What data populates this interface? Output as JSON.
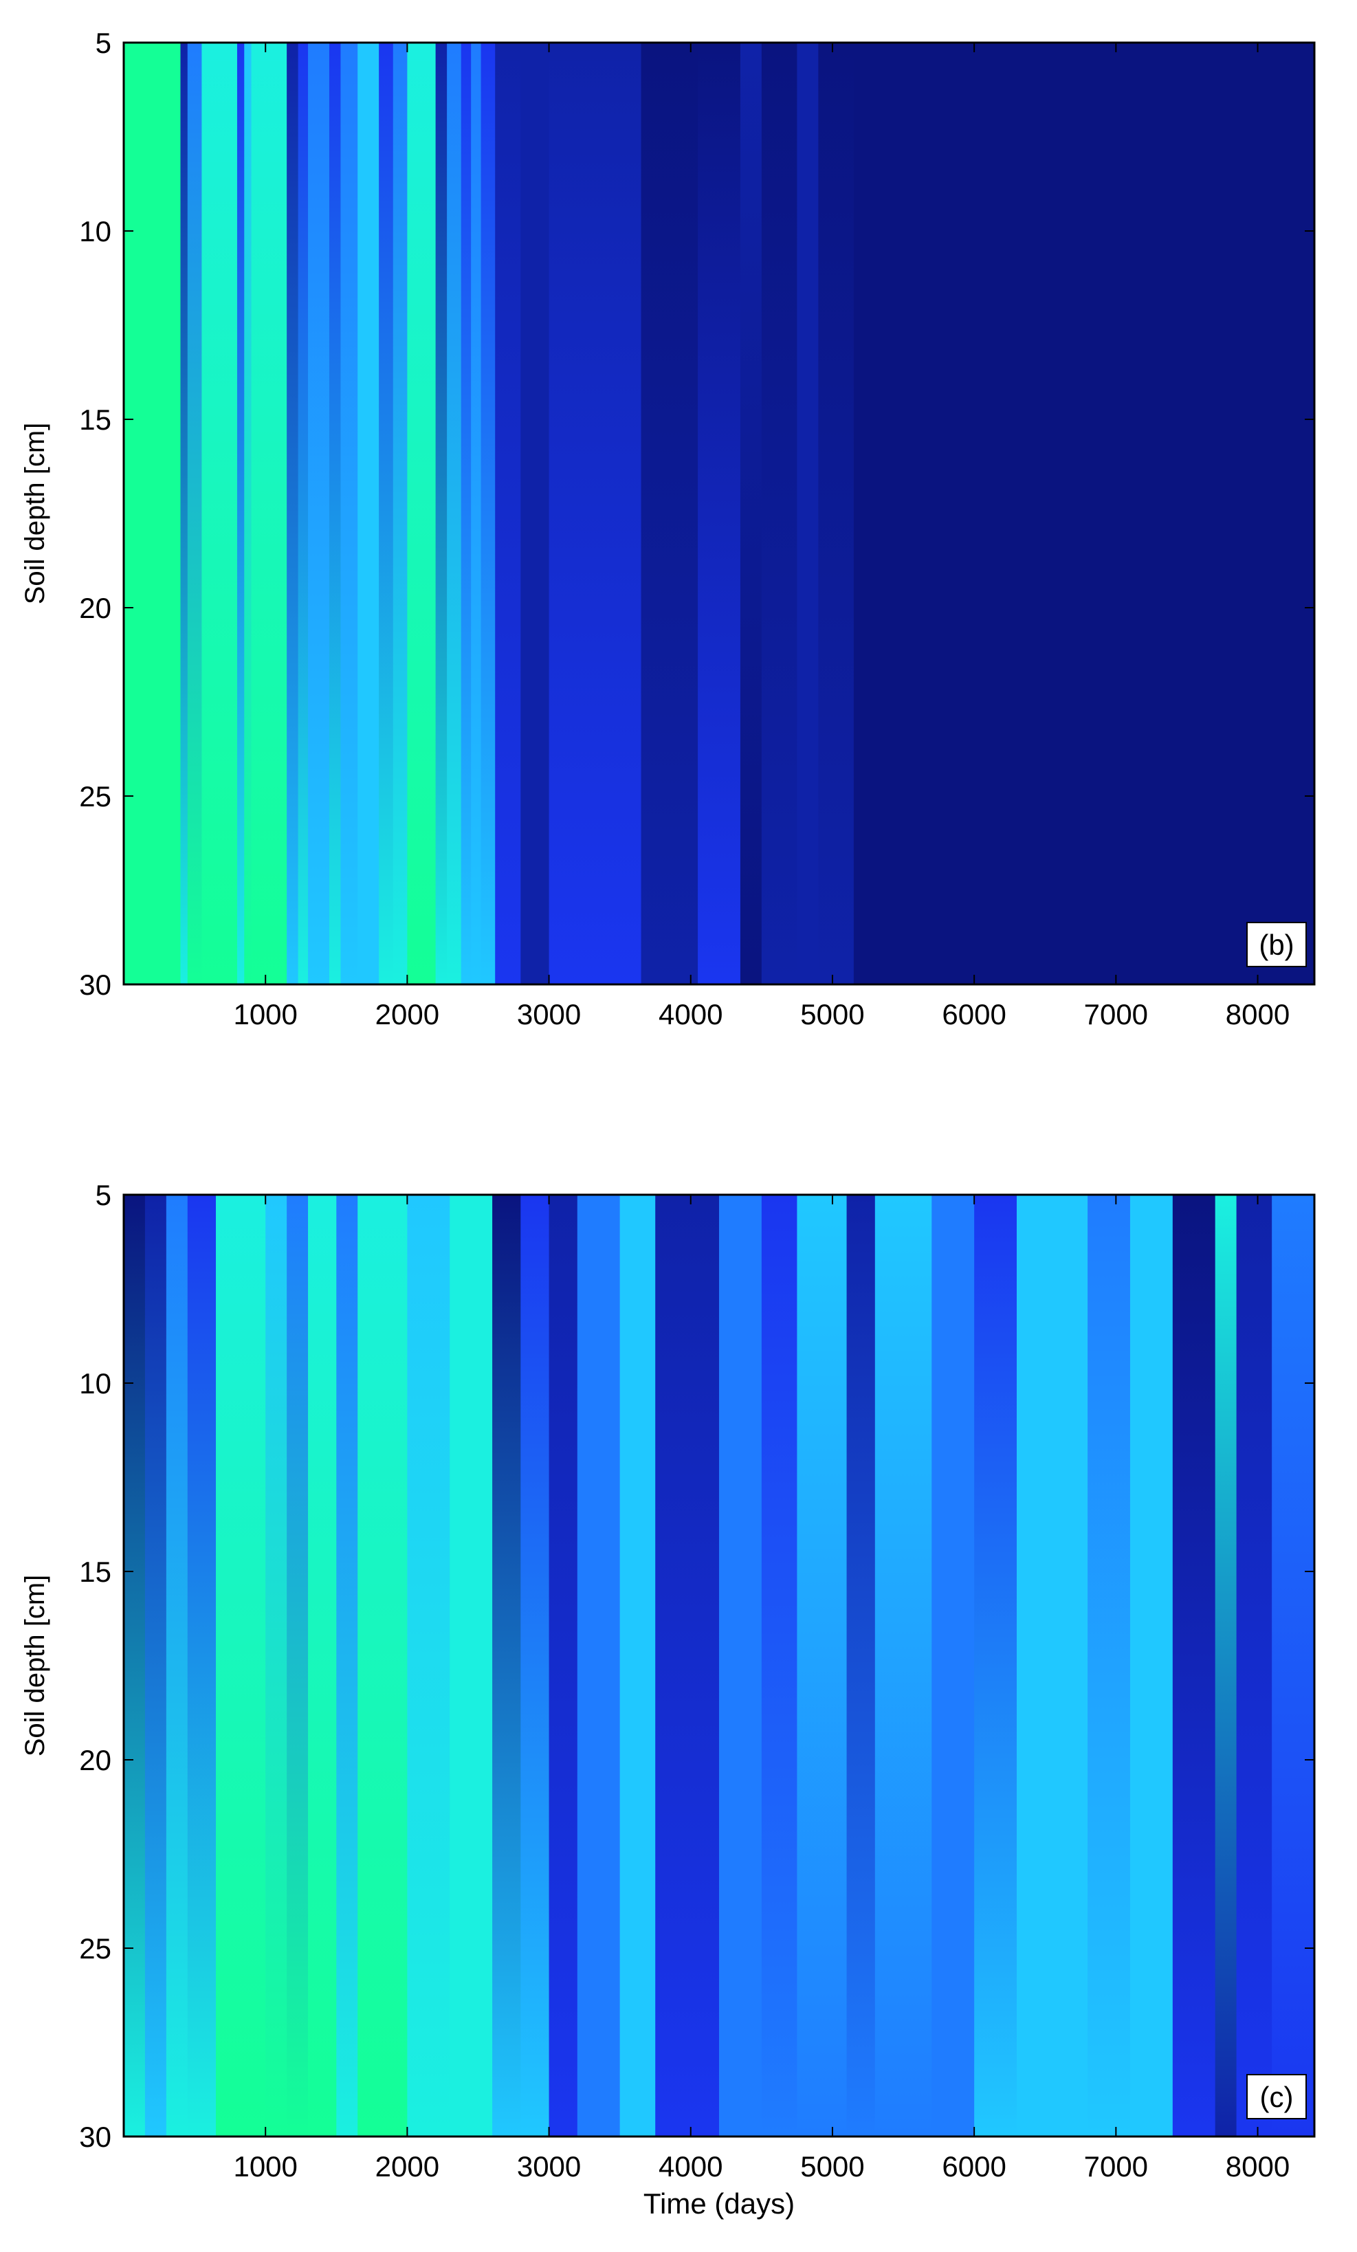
{
  "chart_data": [
    {
      "type": "heatmap",
      "panel_label": "(b)",
      "xlabel": "",
      "ylabel": "Soil depth [cm]",
      "xlim": [
        0,
        8400
      ],
      "ylim": [
        5,
        30
      ],
      "y_reversed": true,
      "xticks": [
        1000,
        2000,
        3000,
        4000,
        5000,
        6000,
        7000,
        8000
      ],
      "yticks": [
        5,
        10,
        15,
        20,
        25,
        30
      ],
      "palette": {
        "0": "#0a1480",
        "1": "#0f22a8",
        "2": "#1a36f0",
        "3": "#1f7cff",
        "4": "#20c8ff",
        "5": "#1bf0e0",
        "6": "#14ff96"
      },
      "segments": [
        {
          "x0": 0,
          "x1": 400,
          "top": 6,
          "bottom": 6
        },
        {
          "x0": 400,
          "x1": 450,
          "top": 1,
          "bottom": 5
        },
        {
          "x0": 450,
          "x1": 550,
          "top": 3,
          "bottom": 6
        },
        {
          "x0": 550,
          "x1": 800,
          "top": 5,
          "bottom": 6
        },
        {
          "x0": 800,
          "x1": 850,
          "top": 2,
          "bottom": 5
        },
        {
          "x0": 850,
          "x1": 900,
          "top": 4,
          "bottom": 6
        },
        {
          "x0": 900,
          "x1": 1150,
          "top": 5,
          "bottom": 6
        },
        {
          "x0": 1150,
          "x1": 1230,
          "top": 1,
          "bottom": 4
        },
        {
          "x0": 1230,
          "x1": 1300,
          "top": 2,
          "bottom": 5
        },
        {
          "x0": 1300,
          "x1": 1450,
          "top": 3,
          "bottom": 4
        },
        {
          "x0": 1450,
          "x1": 1530,
          "top": 2,
          "bottom": 5
        },
        {
          "x0": 1530,
          "x1": 1650,
          "top": 3,
          "bottom": 4
        },
        {
          "x0": 1650,
          "x1": 1800,
          "top": 4,
          "bottom": 4
        },
        {
          "x0": 1800,
          "x1": 1900,
          "top": 2,
          "bottom": 5
        },
        {
          "x0": 1900,
          "x1": 2000,
          "top": 3,
          "bottom": 5
        },
        {
          "x0": 2000,
          "x1": 2200,
          "top": 5,
          "bottom": 6
        },
        {
          "x0": 2200,
          "x1": 2280,
          "top": 1,
          "bottom": 5
        },
        {
          "x0": 2280,
          "x1": 2380,
          "top": 3,
          "bottom": 5
        },
        {
          "x0": 2380,
          "x1": 2450,
          "top": 2,
          "bottom": 4
        },
        {
          "x0": 2450,
          "x1": 2520,
          "top": 3,
          "bottom": 4
        },
        {
          "x0": 2520,
          "x1": 2620,
          "top": 2,
          "bottom": 4
        },
        {
          "x0": 2620,
          "x1": 2800,
          "top": 1,
          "bottom": 2
        },
        {
          "x0": 2800,
          "x1": 3000,
          "top": 1,
          "bottom": 1
        },
        {
          "x0": 3000,
          "x1": 3400,
          "top": 1,
          "bottom": 2
        },
        {
          "x0": 3400,
          "x1": 3650,
          "top": 1,
          "bottom": 2
        },
        {
          "x0": 3650,
          "x1": 4050,
          "top": 0,
          "bottom": 1
        },
        {
          "x0": 4050,
          "x1": 4350,
          "top": 0,
          "bottom": 2
        },
        {
          "x0": 4350,
          "x1": 4500,
          "top": 1,
          "bottom": 0
        },
        {
          "x0": 4500,
          "x1": 4750,
          "top": 0,
          "bottom": 1
        },
        {
          "x0": 4750,
          "x1": 4900,
          "top": 1,
          "bottom": 1
        },
        {
          "x0": 4900,
          "x1": 5150,
          "top": 0,
          "bottom": 1
        },
        {
          "x0": 5150,
          "x1": 8400,
          "top": 0,
          "bottom": 0
        }
      ]
    },
    {
      "type": "heatmap",
      "panel_label": "(c)",
      "xlabel": "Time (days)",
      "ylabel": "Soil depth [cm]",
      "xlim": [
        0,
        8400
      ],
      "ylim": [
        5,
        30
      ],
      "y_reversed": true,
      "xticks": [
        1000,
        2000,
        3000,
        4000,
        5000,
        6000,
        7000,
        8000
      ],
      "yticks": [
        5,
        10,
        15,
        20,
        25,
        30
      ],
      "palette": {
        "0": "#0a1480",
        "1": "#0f22a8",
        "2": "#1a36f0",
        "3": "#1f7cff",
        "4": "#20c8ff",
        "5": "#1bf0e0",
        "6": "#14ff96"
      },
      "segments": [
        {
          "x0": 0,
          "x1": 150,
          "top": 0,
          "bottom": 5
        },
        {
          "x0": 150,
          "x1": 300,
          "top": 1,
          "bottom": 4
        },
        {
          "x0": 300,
          "x1": 450,
          "top": 3,
          "bottom": 5
        },
        {
          "x0": 450,
          "x1": 650,
          "top": 2,
          "bottom": 5
        },
        {
          "x0": 650,
          "x1": 1000,
          "top": 5,
          "bottom": 6
        },
        {
          "x0": 1000,
          "x1": 1150,
          "top": 4,
          "bottom": 6
        },
        {
          "x0": 1150,
          "x1": 1300,
          "top": 3,
          "bottom": 6
        },
        {
          "x0": 1300,
          "x1": 1500,
          "top": 5,
          "bottom": 6
        },
        {
          "x0": 1500,
          "x1": 1650,
          "top": 3,
          "bottom": 5
        },
        {
          "x0": 1650,
          "x1": 2000,
          "top": 5,
          "bottom": 6
        },
        {
          "x0": 2000,
          "x1": 2300,
          "top": 4,
          "bottom": 5
        },
        {
          "x0": 2300,
          "x1": 2600,
          "top": 5,
          "bottom": 5
        },
        {
          "x0": 2600,
          "x1": 2800,
          "top": 0,
          "bottom": 4
        },
        {
          "x0": 2800,
          "x1": 3000,
          "top": 2,
          "bottom": 4
        },
        {
          "x0": 3000,
          "x1": 3200,
          "top": 1,
          "bottom": 2
        },
        {
          "x0": 3200,
          "x1": 3500,
          "top": 3,
          "bottom": 3
        },
        {
          "x0": 3500,
          "x1": 3750,
          "top": 4,
          "bottom": 4
        },
        {
          "x0": 3750,
          "x1": 4200,
          "top": 1,
          "bottom": 2
        },
        {
          "x0": 4200,
          "x1": 4500,
          "top": 3,
          "bottom": 3
        },
        {
          "x0": 4500,
          "x1": 4750,
          "top": 2,
          "bottom": 3
        },
        {
          "x0": 4750,
          "x1": 5100,
          "top": 4,
          "bottom": 3
        },
        {
          "x0": 5100,
          "x1": 5300,
          "top": 1,
          "bottom": 3
        },
        {
          "x0": 5300,
          "x1": 5700,
          "top": 4,
          "bottom": 3
        },
        {
          "x0": 5700,
          "x1": 6000,
          "top": 3,
          "bottom": 3
        },
        {
          "x0": 6000,
          "x1": 6300,
          "top": 2,
          "bottom": 4
        },
        {
          "x0": 6300,
          "x1": 6800,
          "top": 4,
          "bottom": 4
        },
        {
          "x0": 6800,
          "x1": 7100,
          "top": 3,
          "bottom": 4
        },
        {
          "x0": 7100,
          "x1": 7400,
          "top": 4,
          "bottom": 4
        },
        {
          "x0": 7400,
          "x1": 7700,
          "top": 0,
          "bottom": 2
        },
        {
          "x0": 7700,
          "x1": 7850,
          "top": 5,
          "bottom": 1
        },
        {
          "x0": 7850,
          "x1": 8100,
          "top": 1,
          "bottom": 2
        },
        {
          "x0": 8100,
          "x1": 8400,
          "top": 3,
          "bottom": 2
        }
      ]
    }
  ]
}
